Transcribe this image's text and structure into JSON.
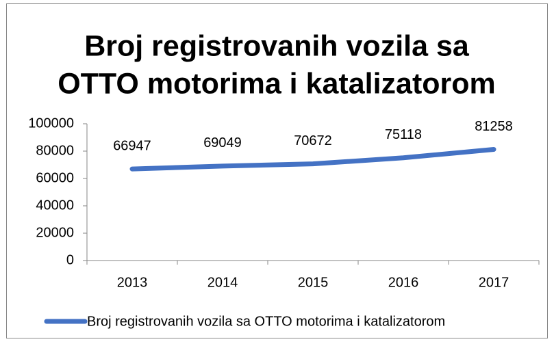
{
  "chart_data": {
    "type": "line",
    "title": [
      "Broj registrovanih vozila sa",
      "OTTO motorima i katalizatorom"
    ],
    "categories": [
      "2013",
      "2014",
      "2015",
      "2016",
      "2017"
    ],
    "series": [
      {
        "name": "Broj registrovanih vozila sa OTTO motorima i katalizatorom",
        "color": "#4472c4",
        "values": [
          66947,
          69049,
          70672,
          75118,
          81258
        ]
      }
    ],
    "ylim": [
      0,
      100000
    ],
    "yticks": [
      0,
      20000,
      40000,
      60000,
      80000,
      100000
    ],
    "grid": false,
    "legend": "bottom",
    "data_labels": true
  }
}
